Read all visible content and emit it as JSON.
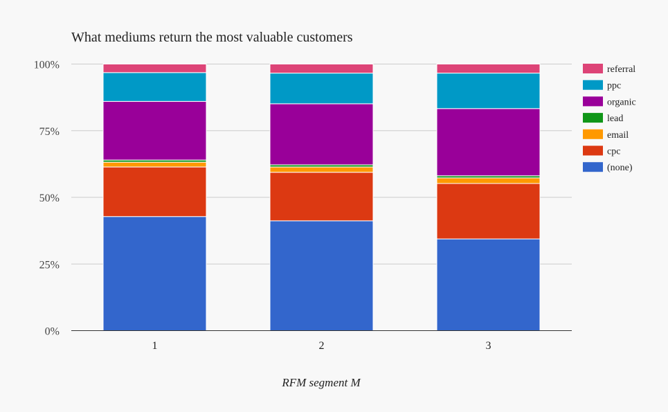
{
  "chart_data": {
    "type": "bar",
    "stacked": "percent",
    "title": "What mediums return the most valuable customers",
    "xlabel": "RFM segment M",
    "ylabel": "",
    "categories": [
      "1",
      "2",
      "3"
    ],
    "ylim": [
      0,
      100
    ],
    "yticks": [
      "0%",
      "25%",
      "50%",
      "75%",
      "100%"
    ],
    "grid": true,
    "legend_position": "right",
    "series": [
      {
        "name": "(none)",
        "color": "#3366cc",
        "values": [
          42.8,
          41.2,
          34.4
        ]
      },
      {
        "name": "cpc",
        "color": "#dc3912",
        "values": [
          18.6,
          18.2,
          20.8
        ]
      },
      {
        "name": "email",
        "color": "#ff9900",
        "values": [
          1.8,
          2.0,
          2.1
        ]
      },
      {
        "name": "lead",
        "color": "#109618",
        "values": [
          0.8,
          0.8,
          0.8
        ]
      },
      {
        "name": "organic",
        "color": "#990099",
        "values": [
          22.0,
          22.9,
          25.2
        ]
      },
      {
        "name": "ppc",
        "color": "#0099c6",
        "values": [
          10.8,
          11.5,
          13.3
        ]
      },
      {
        "name": "referral",
        "color": "#dd4477",
        "values": [
          3.2,
          3.4,
          3.4
        ]
      }
    ]
  }
}
